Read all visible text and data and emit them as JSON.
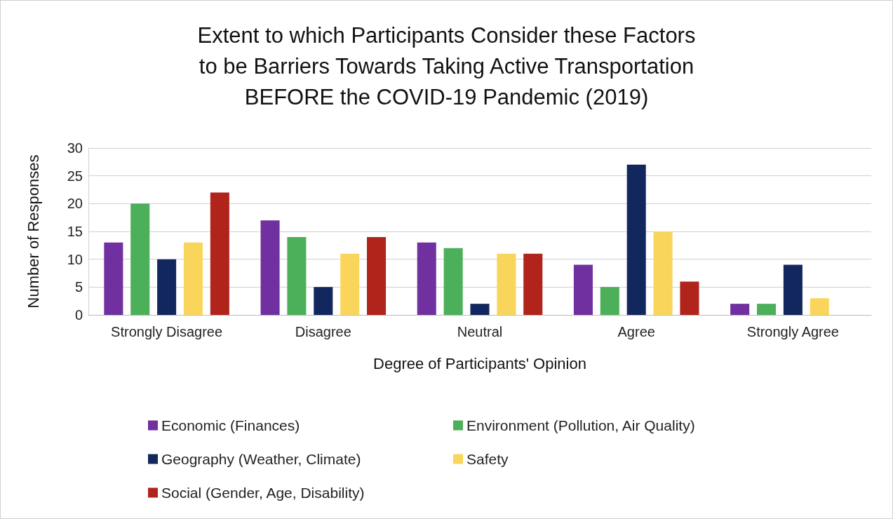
{
  "chart_data": {
    "type": "bar",
    "title": "Extent to which Participants Consider these Factors\nto be Barriers Towards Taking Active Transportation\nBEFORE the COVID-19 Pandemic (2019)",
    "xlabel": "Degree of Participants' Opinion",
    "ylabel": "Number of Responses",
    "categories": [
      "Strongly Disagree",
      "Disagree",
      "Neutral",
      "Agree",
      "Strongly Agree"
    ],
    "series": [
      {
        "name": "Economic (Finances)",
        "color": "#7030a0",
        "values": [
          13,
          17,
          13,
          9,
          2
        ]
      },
      {
        "name": "Environment (Pollution, Air Quality)",
        "color": "#4caf5a",
        "values": [
          20,
          14,
          12,
          5,
          2
        ]
      },
      {
        "name": "Geography (Weather, Climate)",
        "color": "#13275f",
        "values": [
          10,
          5,
          2,
          27,
          9
        ]
      },
      {
        "name": "Safety",
        "color": "#f9d65b",
        "values": [
          13,
          11,
          11,
          15,
          3
        ]
      },
      {
        "name": "Social (Gender, Age, Disability)",
        "color": "#b0241b",
        "values": [
          22,
          14,
          11,
          6,
          0
        ]
      }
    ],
    "ylim": [
      0,
      30
    ],
    "yticks": [
      0,
      5,
      10,
      15,
      20,
      25,
      30
    ],
    "grid": "y",
    "legend": "bottom"
  }
}
